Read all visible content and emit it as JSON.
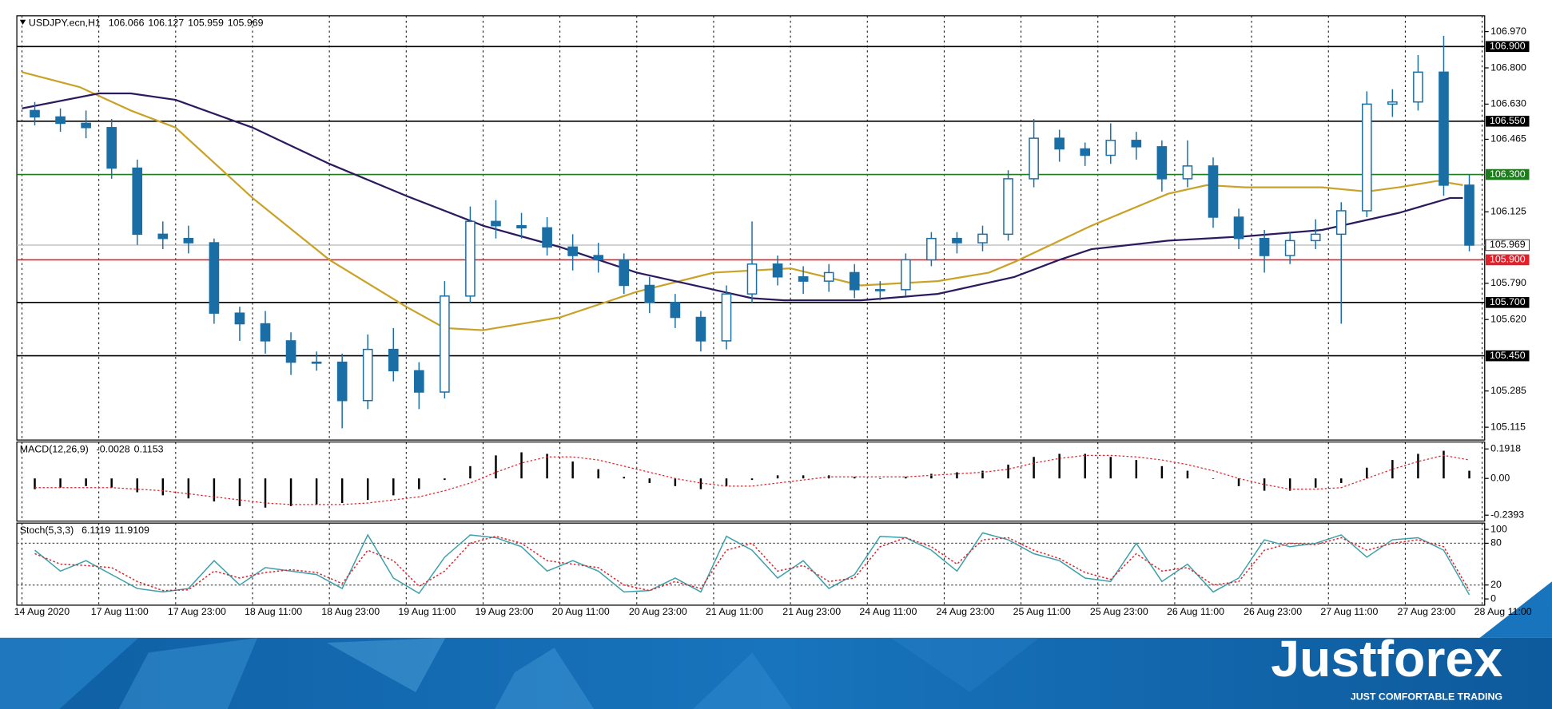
{
  "chart_data": [
    {
      "type": "candlestick",
      "title": "USDJPY.ecn,H1",
      "title_values": [
        106.066,
        106.127,
        105.959,
        105.969
      ],
      "color": "#1a6ea6",
      "x": [
        2,
        6,
        10,
        14,
        18,
        22,
        26,
        30,
        34,
        38,
        42,
        46,
        50,
        54,
        58,
        62,
        66,
        70,
        74,
        78,
        82,
        86,
        90,
        94,
        98,
        102,
        106,
        110,
        114,
        118,
        122,
        126,
        130,
        134,
        138,
        142,
        146,
        150,
        154,
        158,
        162,
        166,
        170,
        174,
        178,
        182,
        186,
        190,
        194,
        198,
        202,
        206,
        210,
        214,
        218,
        222,
        226
      ],
      "open": [
        106.6,
        106.57,
        106.54,
        106.52,
        106.33,
        106.02,
        106.0,
        105.98,
        105.65,
        105.6,
        105.52,
        105.42,
        105.42,
        105.24,
        105.48,
        105.38,
        105.28,
        105.73,
        106.08,
        106.06,
        106.05,
        105.96,
        105.92,
        105.9,
        105.78,
        105.7,
        105.63,
        105.52,
        105.74,
        105.88,
        105.82,
        105.8,
        105.84,
        105.76,
        105.76,
        105.9,
        106.0,
        105.98,
        106.02,
        106.28,
        106.47,
        106.42,
        106.39,
        106.46,
        106.43,
        106.28,
        106.34,
        106.1,
        106.0,
        105.92,
        105.99,
        106.02,
        106.13,
        106.63,
        106.64,
        106.78,
        106.25
      ],
      "high": [
        106.64,
        106.61,
        106.6,
        106.56,
        106.37,
        106.08,
        106.06,
        106.0,
        105.68,
        105.66,
        105.56,
        105.47,
        105.46,
        105.55,
        105.58,
        105.42,
        105.8,
        106.15,
        106.18,
        106.12,
        106.1,
        106.02,
        105.98,
        105.93,
        105.82,
        105.74,
        105.66,
        105.78,
        106.08,
        105.92,
        105.87,
        105.88,
        105.88,
        105.8,
        105.93,
        106.03,
        106.03,
        106.06,
        106.32,
        106.56,
        106.51,
        106.45,
        106.54,
        106.5,
        106.46,
        106.46,
        106.38,
        106.14,
        106.04,
        106.03,
        106.09,
        106.17,
        106.69,
        106.7,
        106.86,
        106.95,
        106.3
      ],
      "low": [
        106.53,
        106.5,
        106.47,
        106.28,
        105.97,
        105.95,
        105.93,
        105.6,
        105.52,
        105.46,
        105.36,
        105.38,
        105.11,
        105.2,
        105.33,
        105.2,
        105.25,
        105.7,
        106.0,
        106.0,
        105.92,
        105.85,
        105.84,
        105.74,
        105.65,
        105.58,
        105.47,
        105.48,
        105.7,
        105.78,
        105.74,
        105.75,
        105.72,
        105.71,
        105.73,
        105.87,
        105.93,
        105.94,
        105.99,
        106.24,
        106.36,
        106.34,
        106.35,
        106.37,
        106.22,
        106.24,
        106.05,
        105.95,
        105.84,
        105.88,
        105.95,
        105.6,
        106.1,
        106.57,
        106.6,
        106.2,
        105.94
      ],
      "close": [
        106.57,
        106.54,
        106.52,
        106.33,
        106.02,
        106.0,
        105.98,
        105.65,
        105.6,
        105.52,
        105.42,
        105.42,
        105.24,
        105.48,
        105.38,
        105.28,
        105.73,
        106.08,
        106.06,
        106.05,
        105.96,
        105.92,
        105.9,
        105.78,
        105.7,
        105.63,
        105.52,
        105.74,
        105.88,
        105.82,
        105.8,
        105.84,
        105.76,
        105.76,
        105.9,
        106.0,
        105.98,
        106.02,
        106.28,
        106.47,
        106.42,
        106.39,
        106.46,
        106.43,
        106.28,
        106.34,
        106.1,
        106.0,
        105.92,
        105.99,
        106.02,
        106.13,
        106.63,
        106.64,
        106.78,
        106.25,
        105.969
      ],
      "series": [
        {
          "color": "#c9a227",
          "x": [
            0,
            9,
            17,
            24,
            36,
            48,
            60,
            66,
            72,
            84,
            96,
            108,
            120,
            131,
            143,
            151,
            155,
            167,
            179,
            185,
            191,
            203,
            210,
            215,
            221,
            225
          ],
          "values": [
            106.78,
            106.71,
            106.6,
            106.52,
            106.19,
            105.9,
            105.68,
            105.58,
            105.57,
            105.63,
            105.75,
            105.84,
            105.86,
            105.78,
            105.8,
            105.84,
            105.89,
            106.06,
            106.21,
            106.25,
            106.24,
            106.24,
            106.22,
            106.24,
            106.27,
            106.25
          ]
        },
        {
          "color": "#2b1a5e",
          "x": [
            0,
            12,
            17,
            24,
            36,
            48,
            60,
            72,
            84,
            96,
            108,
            114,
            119,
            131,
            143,
            155,
            162,
            167,
            179,
            191,
            203,
            215,
            223,
            225
          ],
          "values": [
            106.61,
            106.68,
            106.68,
            106.65,
            106.52,
            106.35,
            106.2,
            106.06,
            105.96,
            105.84,
            105.76,
            105.72,
            105.71,
            105.71,
            105.74,
            105.82,
            105.9,
            105.95,
            105.99,
            106.01,
            106.04,
            106.12,
            106.19,
            106.19
          ]
        }
      ],
      "levels": [
        {
          "value": 106.9,
          "label": "106.900",
          "color": "#000000"
        },
        {
          "value": 106.55,
          "label": "106.550",
          "color": "#000000"
        },
        {
          "value": 106.3,
          "label": "106.300",
          "color": "#1e7b1e"
        },
        {
          "value": 105.9,
          "label": "105.900",
          "color": "#e3202a"
        },
        {
          "value": 105.7,
          "label": "105.700",
          "color": "#000000"
        },
        {
          "value": 105.45,
          "label": "105.450",
          "color": "#000000"
        }
      ],
      "last_price": {
        "value": 105.969,
        "label": "105.969",
        "color": "#b8b8b8"
      },
      "xlim": [
        -0.8,
        228.4
      ],
      "ylim": [
        105.055,
        107.044
      ],
      "yticks": [
        {
          "value": 106.97,
          "label": "106.970"
        },
        {
          "value": 106.8,
          "label": "106.800"
        },
        {
          "value": 106.63,
          "label": "106.630"
        },
        106.465,
        106.125,
        {
          "value": 105.79,
          "label": "105.790"
        },
        {
          "value": 105.62,
          "label": "105.620"
        },
        105.285,
        105.115
      ],
      "xticks": [
        {
          "value": 0,
          "label": "14 Aug 2020"
        },
        {
          "value": 12,
          "label": "17 Aug 11:00"
        },
        {
          "value": 24,
          "label": "17 Aug 23:00"
        },
        {
          "value": 36,
          "label": "18 Aug 11:00"
        },
        {
          "value": 48,
          "label": "18 Aug 23:00"
        },
        {
          "value": 60,
          "label": "19 Aug 11:00"
        },
        {
          "value": 72,
          "label": "19 Aug 23:00"
        },
        {
          "value": 84,
          "label": "20 Aug 11:00"
        },
        {
          "value": 96,
          "label": "20 Aug 23:00"
        },
        {
          "value": 108,
          "label": "21 Aug 11:00"
        },
        {
          "value": 120,
          "label": "21 Aug 23:00"
        },
        {
          "value": 132,
          "label": "24 Aug 11:00"
        },
        {
          "value": 144,
          "label": "24 Aug 23:00"
        },
        {
          "value": 156,
          "label": "25 Aug 11:00"
        },
        {
          "value": 168,
          "label": "25 Aug 23:00"
        },
        {
          "value": 180,
          "label": "26 Aug 11:00"
        },
        {
          "value": 192,
          "label": "26 Aug 23:00"
        },
        {
          "value": 204,
          "label": "27 Aug 11:00"
        },
        {
          "value": 216,
          "label": "27 Aug 23:00"
        },
        {
          "value": 228,
          "label": "28 Aug 11:00"
        }
      ],
      "grid": true
    },
    {
      "type": "macd",
      "title": "MACD(12,26,9)",
      "title_values": [
        -0.0028,
        0.1153
      ],
      "ylim": [
        -0.278,
        0.237
      ],
      "yticks": [
        0.1918,
        {
          "value": 0,
          "label": "0.00"
        },
        -0.2393
      ],
      "series": [
        {
          "style": "histogram",
          "color": "#000000",
          "values": [
            -0.07,
            -0.06,
            -0.05,
            -0.06,
            -0.09,
            -0.11,
            -0.13,
            -0.15,
            -0.18,
            -0.19,
            -0.18,
            -0.17,
            -0.16,
            -0.14,
            -0.11,
            -0.07,
            -0.01,
            0.08,
            0.15,
            0.17,
            0.16,
            0.11,
            0.06,
            0.01,
            -0.03,
            -0.05,
            -0.07,
            -0.05,
            -0.01,
            0.02,
            0.02,
            0.02,
            0.01,
            0,
            0.01,
            0.03,
            0.04,
            0.05,
            0.09,
            0.14,
            0.16,
            0.16,
            0.14,
            0.12,
            0.08,
            0.05,
            0,
            -0.05,
            -0.08,
            -0.08,
            -0.06,
            -0.03,
            0.07,
            0.12,
            0.16,
            0.18,
            0.05
          ]
        },
        {
          "style": "dotted",
          "color": "#e3202a",
          "values": [
            -0.06,
            -0.06,
            -0.06,
            -0.06,
            -0.07,
            -0.08,
            -0.1,
            -0.12,
            -0.14,
            -0.16,
            -0.17,
            -0.17,
            -0.17,
            -0.16,
            -0.14,
            -0.12,
            -0.08,
            -0.03,
            0.04,
            0.1,
            0.14,
            0.14,
            0.12,
            0.08,
            0.04,
            0,
            -0.03,
            -0.05,
            -0.05,
            -0.03,
            -0.01,
            0.01,
            0.01,
            0.01,
            0.01,
            0.02,
            0.03,
            0.04,
            0.06,
            0.1,
            0.13,
            0.15,
            0.15,
            0.14,
            0.12,
            0.09,
            0.05,
            0,
            -0.04,
            -0.07,
            -0.07,
            -0.06,
            0,
            0.06,
            0.11,
            0.15,
            0.12
          ]
        }
      ]
    },
    {
      "type": "stochastic",
      "title": "Stoch(5,3,3)",
      "title_values": [
        6.1119,
        11.9109
      ],
      "ylim": [
        -9,
        109
      ],
      "yticks": [
        100,
        80,
        20,
        0
      ],
      "level_grid": true,
      "series": [
        {
          "style": "solid",
          "color": "#3aa0a8",
          "values": [
            70,
            40,
            55,
            35,
            15,
            10,
            15,
            55,
            20,
            45,
            40,
            35,
            15,
            92,
            30,
            8,
            60,
            92,
            88,
            75,
            40,
            55,
            40,
            10,
            12,
            30,
            10,
            90,
            70,
            30,
            55,
            15,
            35,
            90,
            88,
            70,
            40,
            95,
            85,
            65,
            55,
            30,
            25,
            80,
            25,
            50,
            10,
            30,
            85,
            75,
            80,
            92,
            60,
            85,
            88,
            70,
            6
          ]
        },
        {
          "style": "dotted",
          "color": "#e3202a",
          "values": [
            65,
            50,
            48,
            45,
            25,
            12,
            13,
            40,
            30,
            38,
            42,
            38,
            22,
            70,
            55,
            18,
            40,
            80,
            90,
            80,
            55,
            50,
            45,
            20,
            12,
            25,
            15,
            70,
            80,
            40,
            48,
            25,
            30,
            75,
            88,
            75,
            50,
            85,
            88,
            70,
            58,
            38,
            28,
            65,
            40,
            45,
            20,
            25,
            70,
            80,
            78,
            88,
            70,
            80,
            85,
            75,
            12
          ]
        }
      ]
    }
  ],
  "footer": {
    "brand": "Justforex",
    "tagline": "JUST COMFORTABLE TRADING"
  }
}
